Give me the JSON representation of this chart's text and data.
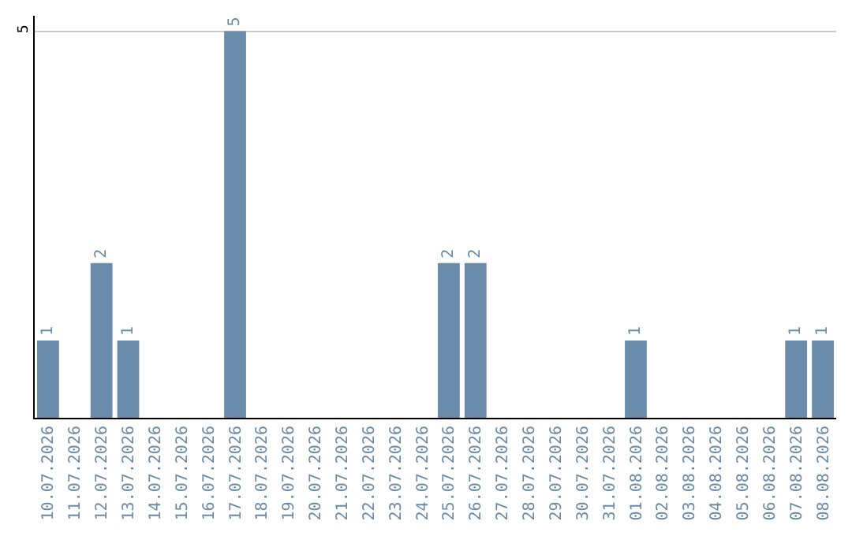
{
  "chart_data": {
    "type": "bar",
    "categories": [
      "10.07.2026",
      "11.07.2026",
      "12.07.2026",
      "13.07.2026",
      "14.07.2026",
      "15.07.2026",
      "16.07.2026",
      "17.07.2026",
      "18.07.2026",
      "19.07.2026",
      "20.07.2026",
      "21.07.2026",
      "22.07.2026",
      "23.07.2026",
      "24.07.2026",
      "25.07.2026",
      "26.07.2026",
      "27.07.2026",
      "28.07.2026",
      "29.07.2026",
      "30.07.2026",
      "31.07.2026",
      "01.08.2026",
      "02.08.2026",
      "03.08.2026",
      "04.08.2026",
      "05.08.2026",
      "06.08.2026",
      "07.08.2026",
      "08.08.2026"
    ],
    "values": [
      1,
      0,
      2,
      1,
      0,
      0,
      0,
      5,
      0,
      0,
      0,
      0,
      0,
      0,
      0,
      2,
      2,
      0,
      0,
      0,
      0,
      0,
      1,
      0,
      0,
      0,
      0,
      0,
      1,
      1
    ],
    "value_labels": [
      "1",
      null,
      "2",
      "1",
      null,
      null,
      null,
      "5",
      null,
      null,
      null,
      null,
      null,
      null,
      null,
      "2",
      "2",
      null,
      null,
      null,
      null,
      null,
      "1",
      null,
      null,
      null,
      null,
      null,
      "1",
      "1"
    ],
    "color": "#6a8caa",
    "ylim": [
      0,
      5.2
    ],
    "yticks": [
      5
    ],
    "grid": "y"
  }
}
